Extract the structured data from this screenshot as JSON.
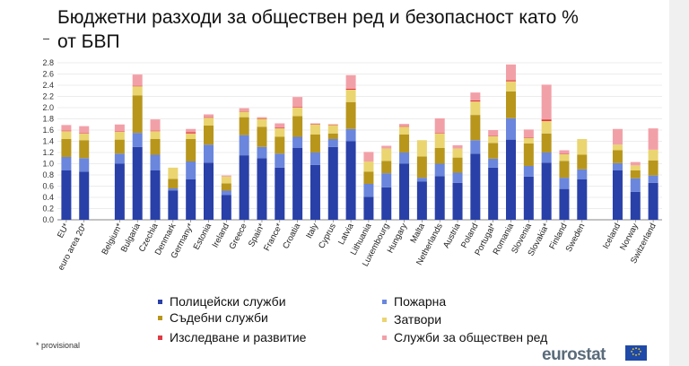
{
  "title_line1": "Бюджетни разходи за обществен ред и безопасност като %",
  "title_line2": "от БВП",
  "footnote": "* provisional",
  "logo_text": "eurostat",
  "legend": [
    {
      "key": "police",
      "label": "Полицейски служби",
      "color": "#2940a8"
    },
    {
      "key": "fire",
      "label": "Пожарна",
      "color": "#6a86dd"
    },
    {
      "key": "courts",
      "label": "Съдебни служби",
      "color": "#b8961c"
    },
    {
      "key": "prisons",
      "label": "Затвори",
      "color": "#ead571"
    },
    {
      "key": "rnd",
      "label": "Изследване и развитие",
      "color": "#e03a45"
    },
    {
      "key": "other",
      "label": "Служби за обществен ред",
      "color": "#f2a0a8"
    }
  ],
  "chart_data": {
    "type": "bar",
    "stacked": true,
    "ylim": [
      0,
      2.8
    ],
    "yticks": [
      "0.0",
      "0.2",
      "0.4",
      "0.6",
      "0.8",
      "1.0",
      "1.2",
      "1.4",
      "1.6",
      "1.8",
      "2.0",
      "2.2",
      "2.4",
      "2.6",
      "2.8"
    ],
    "grid": true,
    "categories": [
      "EU*",
      "euro area 20*",
      "",
      "Belgium*",
      "Bulgaria",
      "Czechia",
      "Denmark",
      "Germany*",
      "Estonia",
      "Ireland",
      "Greece",
      "Spain*",
      "France*",
      "Croatia",
      "Italy",
      "Cyprus",
      "Latvia",
      "Lithuania",
      "Luxembourg",
      "Hungary",
      "Malta",
      "Netherlands",
      "Austria",
      "Poland",
      "Portugal*",
      "Romania",
      "Slovenia",
      "Slovakia*",
      "Finland",
      "Sweden",
      "",
      "Iceland",
      "Norway",
      "Switzerland"
    ],
    "series": [
      {
        "name": "Полицейски служби",
        "color": "#2940a8",
        "values": [
          0.88,
          0.86,
          null,
          1.0,
          1.3,
          0.88,
          0.52,
          0.72,
          1.02,
          0.44,
          1.15,
          1.1,
          0.93,
          1.28,
          0.98,
          1.3,
          1.4,
          0.41,
          0.58,
          1.0,
          0.68,
          0.78,
          0.66,
          1.18,
          0.93,
          1.43,
          0.77,
          1.02,
          0.55,
          0.72,
          null,
          0.88,
          0.5,
          0.66
        ]
      },
      {
        "name": "Пожарна",
        "color": "#6a86dd",
        "values": [
          0.24,
          0.24,
          null,
          0.18,
          0.25,
          0.28,
          0.04,
          0.32,
          0.32,
          0.08,
          0.36,
          0.2,
          0.25,
          0.2,
          0.22,
          0.14,
          0.22,
          0.23,
          0.25,
          0.2,
          0.07,
          0.22,
          0.18,
          0.24,
          0.16,
          0.38,
          0.19,
          0.18,
          0.2,
          0.18,
          null,
          0.13,
          0.24,
          0.13
        ]
      },
      {
        "name": "Съдебни служби",
        "color": "#b8961c",
        "values": [
          0.32,
          0.32,
          null,
          0.25,
          0.67,
          0.28,
          0.17,
          0.4,
          0.34,
          0.13,
          0.32,
          0.36,
          0.3,
          0.37,
          0.32,
          0.1,
          0.48,
          0.22,
          0.22,
          0.32,
          0.38,
          0.28,
          0.27,
          0.45,
          0.28,
          0.48,
          0.4,
          0.34,
          0.3,
          0.26,
          null,
          0.23,
          0.14,
          0.27
        ]
      },
      {
        "name": "Затвори",
        "color": "#ead571",
        "values": [
          0.14,
          0.12,
          null,
          0.14,
          0.16,
          0.14,
          0.2,
          0.1,
          0.14,
          0.12,
          0.1,
          0.14,
          0.15,
          0.15,
          0.18,
          0.15,
          0.22,
          0.18,
          0.22,
          0.14,
          0.29,
          0.26,
          0.16,
          0.24,
          0.12,
          0.18,
          0.1,
          0.22,
          0.12,
          0.28,
          null,
          0.1,
          0.09,
          0.19
        ]
      },
      {
        "name": "Изследване и развитие",
        "color": "#e03a45",
        "values": [
          0.01,
          0.01,
          null,
          0.01,
          0.01,
          0.01,
          0.0,
          0.02,
          0.01,
          0.0,
          0.01,
          0.01,
          0.01,
          0.01,
          0.01,
          0.01,
          0.02,
          0.0,
          0.0,
          0.01,
          0.0,
          0.01,
          0.0,
          0.02,
          0.01,
          0.02,
          0.01,
          0.03,
          0.01,
          0.0,
          null,
          0.0,
          0.0,
          0.0
        ]
      },
      {
        "name": "Служби за обществен ред",
        "color": "#f2a0a8",
        "values": [
          0.1,
          0.12,
          null,
          0.12,
          0.2,
          0.2,
          0.0,
          0.06,
          0.05,
          0.02,
          0.05,
          0.02,
          0.08,
          0.18,
          0.01,
          0.0,
          0.24,
          0.17,
          0.05,
          0.04,
          0.0,
          0.26,
          0.06,
          0.14,
          0.1,
          0.28,
          0.14,
          0.62,
          0.06,
          0.0,
          null,
          0.28,
          0.06,
          0.38
        ]
      }
    ]
  }
}
